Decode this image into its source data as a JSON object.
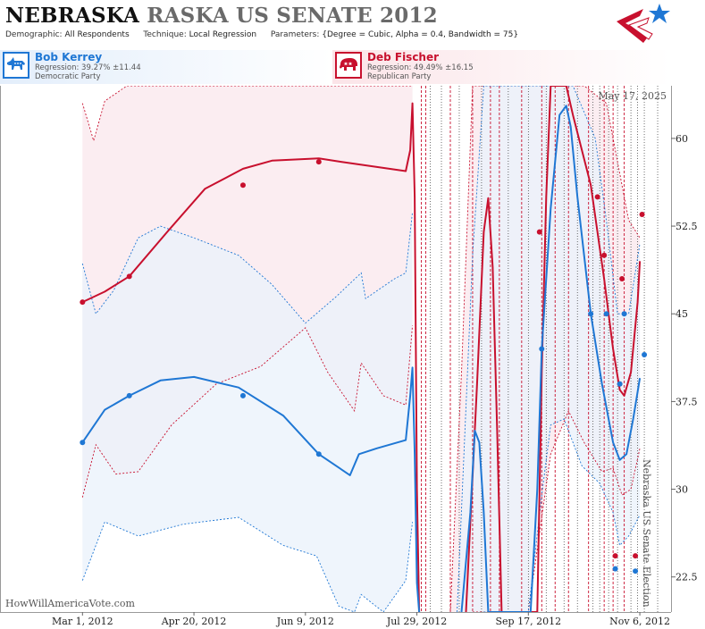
{
  "header": {
    "title_main": "NEBRASKA",
    "title_sub": "RASKA US SENATE 2012",
    "demographic_label": "Demographic:",
    "demographic_value": "All Respondents",
    "technique_label": "Technique:",
    "technique_value": "Local Regression",
    "parameters_label": "Parameters:",
    "parameters_value": "{Degree = Cubic, Alpha = 0.4, Bandwidth = 75}"
  },
  "candidates": {
    "dem": {
      "name": "Bob Kerrey",
      "regression": "Regression: 39.27% ±11.44",
      "party": "Democratic Party"
    },
    "rep": {
      "name": "Deb Fischer",
      "regression": "Regression: 49.49% ±16.15",
      "party": "Republican Party"
    }
  },
  "date_stamp": "May 17, 2025",
  "watermark": "HowWillAmericaVote.com",
  "vertical_label": "Nebraska US Senate Election",
  "colors": {
    "dem": "#1f77d4",
    "rep": "#c8102e",
    "dem_band": "#e9f1fb",
    "rep_band": "#f9e7ec",
    "overlap_band": "#eee9f0"
  },
  "chart_data": {
    "type": "line",
    "x_axis": {
      "ticks": [
        "Mar 1, 2012",
        "Apr 20, 2012",
        "Jun 9, 2012",
        "Jul 29, 2012",
        "Sep 17, 2012",
        "Nov 6, 2012"
      ],
      "tick_days": [
        0,
        50,
        100,
        150,
        200,
        250
      ],
      "range_days": [
        -37,
        264
      ]
    },
    "y_axis": {
      "ticks": [
        "22.5",
        "30",
        "37.5",
        "45",
        "52.5",
        "60"
      ],
      "tick_values": [
        22.5,
        30,
        37.5,
        45,
        52.5,
        60
      ],
      "range": [
        19.5,
        64.5
      ],
      "position": "right"
    },
    "grid": false,
    "series": [
      {
        "name": "Deb Fischer",
        "party": "rep",
        "line": [
          [
            0,
            46
          ],
          [
            10,
            46.9
          ],
          [
            21,
            48.2
          ],
          [
            38,
            52
          ],
          [
            55,
            55.7
          ],
          [
            72,
            57.4
          ],
          [
            85,
            58.1
          ],
          [
            106,
            58.3
          ],
          [
            116,
            58
          ],
          [
            145,
            57.2
          ],
          [
            147,
            59
          ],
          [
            148,
            63
          ],
          [
            149,
            55
          ],
          [
            150,
            30
          ],
          [
            151,
            19.5
          ]
        ],
        "upper": [
          [
            0,
            63
          ],
          [
            5,
            59.8
          ],
          [
            10,
            63.2
          ],
          [
            20,
            64.5
          ],
          [
            145,
            64.5
          ],
          [
            148,
            64.5
          ]
        ],
        "lower": [
          [
            0,
            29.3
          ],
          [
            6,
            33.8
          ],
          [
            15,
            31.3
          ],
          [
            25,
            31.5
          ],
          [
            40,
            35.5
          ],
          [
            60,
            39
          ],
          [
            80,
            40.5
          ],
          [
            100,
            43.8
          ],
          [
            110,
            40
          ],
          [
            122,
            36.7
          ],
          [
            125,
            40.8
          ],
          [
            135,
            38
          ],
          [
            145,
            37.2
          ],
          [
            148,
            44
          ]
        ],
        "points": [
          [
            0,
            46
          ],
          [
            21,
            48.2
          ],
          [
            72,
            56
          ],
          [
            106,
            58
          ]
        ]
      },
      {
        "name": "Bob Kerrey",
        "party": "dem",
        "line": [
          [
            0,
            34
          ],
          [
            10,
            36.8
          ],
          [
            21,
            38
          ],
          [
            35,
            39.3
          ],
          [
            50,
            39.6
          ],
          [
            70,
            38.7
          ],
          [
            90,
            36.3
          ],
          [
            106,
            33
          ],
          [
            120,
            31.2
          ],
          [
            124,
            33
          ],
          [
            132,
            33.5
          ],
          [
            145,
            34.2
          ],
          [
            147,
            38
          ],
          [
            148,
            40.4
          ],
          [
            149,
            33
          ],
          [
            150,
            22
          ],
          [
            151,
            19.5
          ]
        ],
        "upper": [
          [
            0,
            49.3
          ],
          [
            6,
            45
          ],
          [
            14,
            47
          ],
          [
            25,
            51.5
          ],
          [
            35,
            52.5
          ],
          [
            50,
            51.5
          ],
          [
            70,
            50
          ],
          [
            85,
            47.5
          ],
          [
            100,
            44.2
          ],
          [
            114,
            46.5
          ],
          [
            125,
            48.5
          ],
          [
            127,
            46.3
          ],
          [
            140,
            48
          ],
          [
            145,
            48.5
          ],
          [
            148,
            53.7
          ]
        ],
        "lower": [
          [
            0,
            22.2
          ],
          [
            10,
            27.2
          ],
          [
            25,
            26
          ],
          [
            45,
            27
          ],
          [
            70,
            27.6
          ],
          [
            90,
            25.2
          ],
          [
            105,
            24.3
          ],
          [
            115,
            20
          ],
          [
            122,
            19.5
          ],
          [
            125,
            21
          ],
          [
            135,
            19.5
          ],
          [
            145,
            22.2
          ],
          [
            148,
            27.2
          ]
        ],
        "points": [
          [
            0,
            34
          ],
          [
            21,
            38
          ],
          [
            72,
            38
          ],
          [
            106,
            33
          ]
        ]
      }
    ],
    "late_series": [
      {
        "name": "Deb Fischer",
        "party": "rep",
        "line": [
          [
            172,
            19.5
          ],
          [
            177,
            39
          ],
          [
            180,
            52
          ],
          [
            182,
            54.9
          ],
          [
            184,
            49
          ],
          [
            186,
            35
          ],
          [
            188,
            19.5
          ],
          [
            204,
            19.5
          ],
          [
            206,
            40
          ],
          [
            208,
            55
          ],
          [
            210,
            64.5
          ],
          [
            217,
            64.5
          ],
          [
            220,
            62
          ],
          [
            228,
            56
          ],
          [
            234,
            48
          ],
          [
            238,
            42
          ],
          [
            241,
            38.5
          ],
          [
            243,
            38
          ],
          [
            246,
            40
          ],
          [
            249,
            46
          ],
          [
            250,
            49.5
          ]
        ],
        "upper": [
          [
            165,
            19.5
          ],
          [
            170,
            40
          ],
          [
            175,
            64.5
          ],
          [
            190,
            64.5
          ],
          [
            200,
            64.5
          ],
          [
            212,
            64.5
          ],
          [
            225,
            64.5
          ],
          [
            235,
            63
          ],
          [
            240,
            58
          ],
          [
            245,
            53
          ],
          [
            250,
            51.5
          ]
        ],
        "lower": [
          [
            175,
            19.5
          ],
          [
            200,
            19.5
          ],
          [
            210,
            33
          ],
          [
            218,
            36.7
          ],
          [
            225,
            34
          ],
          [
            233,
            31.5
          ],
          [
            238,
            31.8
          ],
          [
            242,
            29.5
          ],
          [
            246,
            30
          ],
          [
            250,
            33.5
          ]
        ],
        "points": [
          [
            205,
            52
          ],
          [
            231,
            55
          ],
          [
            234,
            50
          ],
          [
            242,
            48
          ],
          [
            241,
            39
          ],
          [
            251,
            53.5
          ],
          [
            239,
            24.3
          ],
          [
            248,
            24.3
          ]
        ]
      },
      {
        "name": "Bob Kerrey",
        "party": "dem",
        "line": [
          [
            170,
            19.5
          ],
          [
            174,
            28
          ],
          [
            176,
            35
          ],
          [
            178,
            34
          ],
          [
            180,
            28
          ],
          [
            182,
            19.5
          ],
          [
            201,
            19.5
          ],
          [
            204,
            30
          ],
          [
            206,
            42
          ],
          [
            210,
            54
          ],
          [
            214,
            62
          ],
          [
            217,
            62.8
          ],
          [
            219,
            61
          ],
          [
            222,
            55
          ],
          [
            228,
            45
          ],
          [
            233,
            39
          ],
          [
            238,
            34
          ],
          [
            241,
            32.5
          ],
          [
            244,
            33
          ],
          [
            247,
            36
          ],
          [
            250,
            39.5
          ]
        ],
        "upper": [
          [
            168,
            19.5
          ],
          [
            175,
            50
          ],
          [
            180,
            64.5
          ],
          [
            200,
            64.5
          ],
          [
            210,
            64.5
          ],
          [
            220,
            64.5
          ],
          [
            230,
            60
          ],
          [
            235,
            53
          ],
          [
            240,
            45
          ],
          [
            245,
            45
          ],
          [
            250,
            51
          ]
        ],
        "lower": [
          [
            180,
            19.5
          ],
          [
            200,
            19.5
          ],
          [
            206,
            29.5
          ],
          [
            210,
            35.5
          ],
          [
            216,
            36
          ],
          [
            224,
            32
          ],
          [
            232,
            30.5
          ],
          [
            238,
            28
          ],
          [
            241,
            25.2
          ],
          [
            245,
            26
          ],
          [
            250,
            27.8
          ]
        ],
        "points": [
          [
            206,
            42
          ],
          [
            228,
            45
          ],
          [
            243,
            45
          ],
          [
            241,
            39
          ],
          [
            252,
            41.5
          ],
          [
            239,
            23.2
          ],
          [
            248,
            23
          ],
          [
            235,
            45
          ]
        ]
      }
    ],
    "event_lines": {
      "rep_dashed": [
        152,
        154,
        165,
        175,
        183,
        187,
        197,
        206,
        212,
        218,
        227,
        234,
        238,
        243
      ],
      "black_dotted": [
        156,
        161,
        169,
        179,
        191,
        200,
        208,
        216,
        222,
        229,
        232,
        236,
        240,
        246,
        249,
        252,
        258
      ]
    }
  }
}
